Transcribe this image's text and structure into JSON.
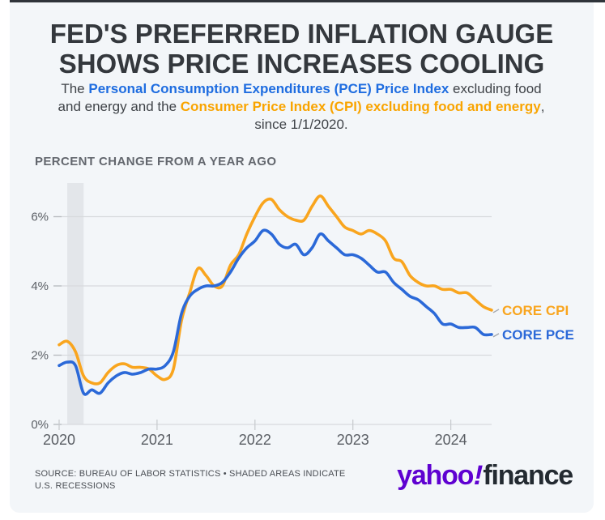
{
  "header": {
    "title_line1": "FED'S PREFERRED INFLATION GAUGE",
    "title_line2": "SHOWS PRICE INCREASES COOLING",
    "subtitle": {
      "pre": "The ",
      "pce": "Personal Consumption Expenditures (PCE) Price Index",
      "mid": " excluding food and energy and the ",
      "cpi": "Consumer Price Index (CPI) excluding food and energy",
      "post": ", since 1/1/2020."
    }
  },
  "chart_heading": "PERCENT CHANGE FROM A YEAR AGO",
  "chart_data": {
    "type": "line",
    "title": "PERCENT CHANGE FROM A YEAR AGO",
    "x_unit": "monthly",
    "x_start": "2020-01",
    "x_end": "2024-06",
    "x_tick_labels": [
      "2020",
      "2021",
      "2022",
      "2023",
      "2024"
    ],
    "x_tick_month_index": [
      0,
      12,
      24,
      36,
      48
    ],
    "y_tick_labels": [
      "0%",
      "2%",
      "4%",
      "6%"
    ],
    "y_tick_values": [
      0,
      2,
      4,
      6
    ],
    "ylim": [
      0,
      6.97
    ],
    "grid": "horizontal",
    "legend_position": "right-of-line-ends",
    "recession_band_month_index": [
      1,
      3
    ],
    "recession_band_color": "#e3e6ea",
    "gridline_color": "#d7dadd",
    "tick_color": "#b9bcc1",
    "axis_label_color": "#5c6066",
    "series": [
      {
        "name": "CORE CPI",
        "color": "#F9A51E",
        "values": [
          2.3,
          2.4,
          2.1,
          1.4,
          1.2,
          1.2,
          1.5,
          1.7,
          1.75,
          1.65,
          1.65,
          1.6,
          1.4,
          1.3,
          1.6,
          3.0,
          3.8,
          4.5,
          4.3,
          4.0,
          4.0,
          4.6,
          4.9,
          5.5,
          6.0,
          6.4,
          6.5,
          6.2,
          6.0,
          5.9,
          5.9,
          6.3,
          6.6,
          6.3,
          6.0,
          5.7,
          5.6,
          5.5,
          5.6,
          5.5,
          5.3,
          4.8,
          4.7,
          4.3,
          4.1,
          4.0,
          4.0,
          3.9,
          3.9,
          3.8,
          3.8,
          3.6,
          3.4,
          3.3
        ]
      },
      {
        "name": "CORE PCE",
        "color": "#2B69D8",
        "values": [
          1.7,
          1.8,
          1.7,
          0.9,
          1.0,
          0.9,
          1.2,
          1.4,
          1.5,
          1.45,
          1.5,
          1.6,
          1.6,
          1.7,
          2.1,
          3.2,
          3.7,
          3.9,
          4.0,
          4.0,
          4.1,
          4.4,
          4.8,
          5.1,
          5.3,
          5.6,
          5.5,
          5.2,
          5.1,
          5.2,
          4.9,
          5.1,
          5.5,
          5.3,
          5.1,
          4.9,
          4.9,
          4.8,
          4.6,
          4.4,
          4.4,
          4.1,
          3.9,
          3.7,
          3.6,
          3.4,
          3.2,
          2.9,
          2.9,
          2.8,
          2.8,
          2.8,
          2.6,
          2.6
        ]
      }
    ]
  },
  "footer": {
    "source": "SOURCE: BUREAU OF LABOR STATISTICS • SHADED AREAS INDICATE U.S. RECESSIONS",
    "logo": {
      "yahoo": "yahoo",
      "bang": "!",
      "finance": "finance"
    }
  }
}
